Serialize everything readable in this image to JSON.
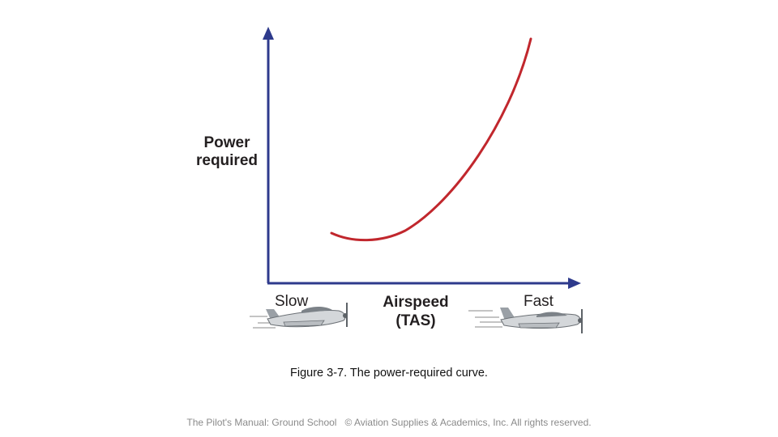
{
  "figure": {
    "y_label": [
      "Power",
      "required"
    ],
    "x_label": [
      "Airspeed",
      "(TAS)"
    ],
    "slow_label": "Slow",
    "fast_label": "Fast",
    "curve_color": "#c1272d",
    "axis_color": "#2e3a8c",
    "icons": [
      "airplane-slow-icon",
      "airplane-fast-icon"
    ]
  },
  "caption": {
    "number": "Figure 3-7.",
    "text": " The power-required curve."
  },
  "footer": {
    "source": "The Pilot's Manual: Ground School",
    "copyright": "© Aviation Supplies & Academics, Inc. All rights reserved."
  }
}
